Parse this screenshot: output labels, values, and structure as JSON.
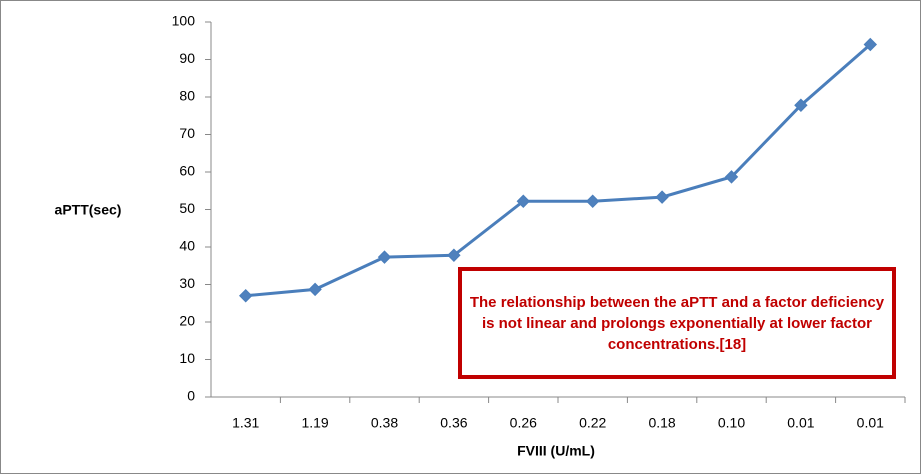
{
  "chart_data": {
    "type": "line",
    "x_label": "FVIII (U/mL)",
    "y_label": "aPTT(sec)",
    "annotation": "The relationship between the aPTT and a factor deficiency is not linear and prolongs exponentially at lower factor concentrations.[18]",
    "categories": [
      "1.31",
      "1.19",
      "0.38",
      "0.36",
      "0.26",
      "0.22",
      "0.18",
      "0.10",
      "0.01",
      "0.01"
    ],
    "series": [
      {
        "name": "aPTT",
        "color": "#4a7ebb",
        "values": [
          27,
          28.7,
          37.3,
          37.8,
          52.2,
          52.2,
          53.3,
          58.7,
          77.8,
          94
        ]
      }
    ],
    "ylim": [
      0,
      100
    ],
    "yticks": [
      0,
      10,
      20,
      30,
      40,
      50,
      60,
      70,
      80,
      90,
      100
    ],
    "grid": false
  }
}
